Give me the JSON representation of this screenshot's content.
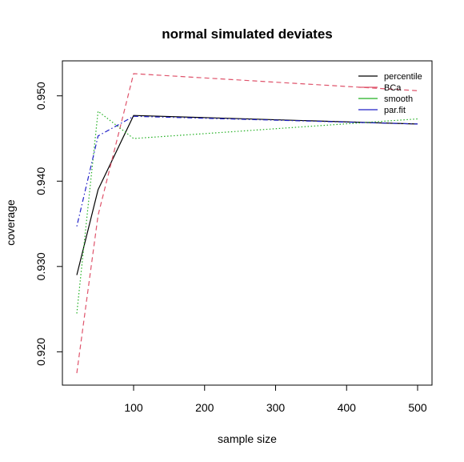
{
  "chart_data": {
    "type": "line",
    "title": "normal simulated deviates",
    "xlabel": "sample size",
    "ylabel": "coverage",
    "x": [
      20,
      50,
      100,
      500
    ],
    "xlim": [
      20,
      500
    ],
    "ylim": [
      0.9175,
      0.9526
    ],
    "xticks": [
      100,
      200,
      300,
      400,
      500
    ],
    "yticks": [
      0.92,
      0.93,
      0.94,
      0.95
    ],
    "xtick_labels": [
      "100",
      "200",
      "300",
      "400",
      "500"
    ],
    "ytick_labels": [
      "0.920",
      "0.930",
      "0.940",
      "0.950"
    ],
    "grid": false,
    "legend_position": "top-right",
    "series": [
      {
        "name": "percentile",
        "color": "#000000",
        "dash": "solid",
        "values": [
          0.929,
          0.939,
          0.9477,
          0.9467
        ]
      },
      {
        "name": "BCa",
        "color": "#DF536B",
        "dash": "dashed",
        "values": [
          0.9175,
          0.936,
          0.9526,
          0.9506
        ]
      },
      {
        "name": "smooth",
        "color": "#22B022",
        "dash": "dotted",
        "values": [
          0.9245,
          0.9482,
          0.945,
          0.9473
        ]
      },
      {
        "name": "par.fit",
        "color": "#2222C8",
        "dash": "dotdash",
        "values": [
          0.9347,
          0.9453,
          0.9476,
          0.9467
        ]
      }
    ]
  }
}
